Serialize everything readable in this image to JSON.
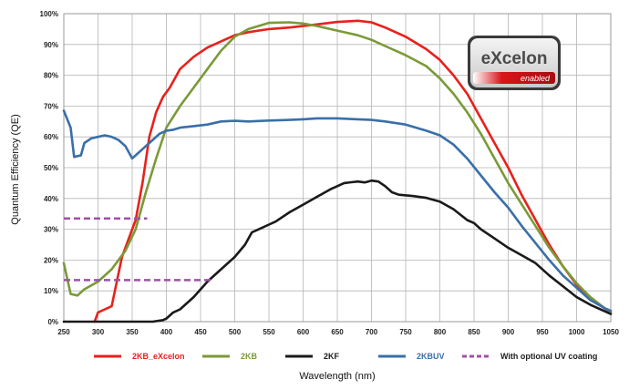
{
  "chart_data": {
    "type": "line",
    "xlabel": "Wavelength (nm)",
    "ylabel": "Quantum Efficiency (QE)",
    "xlim": [
      250,
      1050
    ],
    "ylim": [
      0,
      100
    ],
    "x_ticks": [
      250,
      300,
      350,
      400,
      450,
      500,
      550,
      600,
      650,
      700,
      750,
      800,
      850,
      900,
      950,
      1000,
      1050
    ],
    "y_ticks": [
      0,
      10,
      20,
      30,
      40,
      50,
      60,
      70,
      80,
      90,
      100
    ],
    "y_tick_labels": [
      "0%",
      "10%",
      "20%",
      "30%",
      "40%",
      "50%",
      "60%",
      "70%",
      "80%",
      "90%",
      "100%"
    ],
    "grid": true,
    "legend_position": "bottom",
    "series": [
      {
        "name": "2KB_eXcelon",
        "color": "#e8211b",
        "style": "solid",
        "points": [
          [
            295,
            0
          ],
          [
            300,
            3
          ],
          [
            310,
            4
          ],
          [
            320,
            5
          ],
          [
            335,
            21
          ],
          [
            345,
            27
          ],
          [
            355,
            33
          ],
          [
            365,
            45
          ],
          [
            375,
            60
          ],
          [
            385,
            68
          ],
          [
            395,
            73
          ],
          [
            405,
            76
          ],
          [
            420,
            82
          ],
          [
            440,
            86
          ],
          [
            460,
            89
          ],
          [
            480,
            91
          ],
          [
            500,
            93
          ],
          [
            520,
            94
          ],
          [
            550,
            95
          ],
          [
            580,
            95.5
          ],
          [
            620,
            96.5
          ],
          [
            650,
            97.3
          ],
          [
            680,
            97.7
          ],
          [
            700,
            97.2
          ],
          [
            720,
            95.5
          ],
          [
            750,
            92.5
          ],
          [
            780,
            88.5
          ],
          [
            800,
            85
          ],
          [
            820,
            80
          ],
          [
            840,
            74
          ],
          [
            860,
            66
          ],
          [
            880,
            58
          ],
          [
            900,
            50
          ],
          [
            920,
            41
          ],
          [
            940,
            33
          ],
          [
            960,
            25
          ],
          [
            980,
            18
          ],
          [
            1000,
            12
          ],
          [
            1020,
            8
          ],
          [
            1040,
            4.5
          ],
          [
            1050,
            3
          ]
        ]
      },
      {
        "name": "2KB",
        "color": "#7a9a38",
        "style": "solid",
        "points": [
          [
            250,
            19
          ],
          [
            260,
            9
          ],
          [
            270,
            8.5
          ],
          [
            280,
            10.5
          ],
          [
            300,
            13
          ],
          [
            320,
            17
          ],
          [
            340,
            23
          ],
          [
            355,
            30
          ],
          [
            370,
            42
          ],
          [
            385,
            53
          ],
          [
            400,
            63
          ],
          [
            420,
            70
          ],
          [
            440,
            76
          ],
          [
            460,
            82
          ],
          [
            480,
            88
          ],
          [
            500,
            92.5
          ],
          [
            520,
            95
          ],
          [
            550,
            97
          ],
          [
            580,
            97.2
          ],
          [
            600,
            96.8
          ],
          [
            620,
            96
          ],
          [
            650,
            94.5
          ],
          [
            680,
            93
          ],
          [
            700,
            91.5
          ],
          [
            720,
            89.5
          ],
          [
            750,
            86.5
          ],
          [
            780,
            83
          ],
          [
            800,
            79
          ],
          [
            820,
            74
          ],
          [
            840,
            68
          ],
          [
            860,
            61
          ],
          [
            880,
            53
          ],
          [
            900,
            45
          ],
          [
            920,
            38
          ],
          [
            940,
            31
          ],
          [
            960,
            24
          ],
          [
            980,
            18
          ],
          [
            1000,
            12.5
          ],
          [
            1020,
            8
          ],
          [
            1040,
            4.5
          ],
          [
            1050,
            3
          ]
        ]
      },
      {
        "name": "2KF",
        "color": "#1a1a1a",
        "style": "solid",
        "points": [
          [
            250,
            0
          ],
          [
            280,
            0
          ],
          [
            300,
            0
          ],
          [
            350,
            0
          ],
          [
            380,
            0
          ],
          [
            395,
            0.5
          ],
          [
            400,
            1
          ],
          [
            410,
            3
          ],
          [
            420,
            4
          ],
          [
            440,
            8
          ],
          [
            460,
            13
          ],
          [
            480,
            17
          ],
          [
            500,
            21
          ],
          [
            515,
            25
          ],
          [
            525,
            29
          ],
          [
            540,
            30.5
          ],
          [
            550,
            31.5
          ],
          [
            560,
            32.5
          ],
          [
            580,
            35.5
          ],
          [
            600,
            38
          ],
          [
            620,
            40.5
          ],
          [
            640,
            43
          ],
          [
            660,
            45
          ],
          [
            680,
            45.5
          ],
          [
            690,
            45.2
          ],
          [
            700,
            45.8
          ],
          [
            710,
            45.5
          ],
          [
            720,
            44
          ],
          [
            730,
            42
          ],
          [
            740,
            41.2
          ],
          [
            760,
            40.8
          ],
          [
            780,
            40.2
          ],
          [
            800,
            39
          ],
          [
            820,
            36.5
          ],
          [
            840,
            33
          ],
          [
            850,
            32
          ],
          [
            860,
            30
          ],
          [
            880,
            27
          ],
          [
            900,
            24
          ],
          [
            920,
            21.5
          ],
          [
            940,
            19
          ],
          [
            960,
            15
          ],
          [
            980,
            11.5
          ],
          [
            1000,
            8
          ],
          [
            1020,
            5.5
          ],
          [
            1040,
            3.5
          ],
          [
            1050,
            2.5
          ]
        ]
      },
      {
        "name": "2KBUV",
        "color": "#3a6fa8",
        "style": "solid",
        "points": [
          [
            250,
            68.5
          ],
          [
            260,
            63
          ],
          [
            265,
            53.5
          ],
          [
            275,
            54
          ],
          [
            280,
            58
          ],
          [
            290,
            59.5
          ],
          [
            300,
            60
          ],
          [
            310,
            60.5
          ],
          [
            320,
            60
          ],
          [
            330,
            59
          ],
          [
            340,
            57
          ],
          [
            350,
            53
          ],
          [
            360,
            55
          ],
          [
            370,
            57
          ],
          [
            380,
            59
          ],
          [
            390,
            61
          ],
          [
            400,
            62
          ],
          [
            410,
            62.3
          ],
          [
            420,
            63
          ],
          [
            440,
            63.5
          ],
          [
            460,
            64
          ],
          [
            480,
            65
          ],
          [
            500,
            65.2
          ],
          [
            520,
            65
          ],
          [
            550,
            65.3
          ],
          [
            580,
            65.5
          ],
          [
            600,
            65.7
          ],
          [
            620,
            66
          ],
          [
            650,
            66
          ],
          [
            680,
            65.7
          ],
          [
            700,
            65.5
          ],
          [
            720,
            65
          ],
          [
            750,
            64
          ],
          [
            780,
            62
          ],
          [
            800,
            60.5
          ],
          [
            820,
            57.5
          ],
          [
            840,
            53
          ],
          [
            860,
            47.5
          ],
          [
            880,
            42
          ],
          [
            900,
            37
          ],
          [
            920,
            31
          ],
          [
            940,
            25.5
          ],
          [
            960,
            20
          ],
          [
            980,
            15
          ],
          [
            1000,
            11
          ],
          [
            1020,
            7
          ],
          [
            1040,
            4.5
          ],
          [
            1050,
            3.5
          ]
        ]
      },
      {
        "name": "With optional UV coating",
        "color": "#a050a8",
        "style": "dashed",
        "segments": [
          [
            [
              250,
              33.5
            ],
            [
              372,
              33.5
            ]
          ],
          [
            [
              250,
              13.5
            ],
            [
              470,
              13.5
            ]
          ]
        ]
      }
    ]
  },
  "logo": {
    "main": "eXcelon",
    "sub": "enabled"
  }
}
